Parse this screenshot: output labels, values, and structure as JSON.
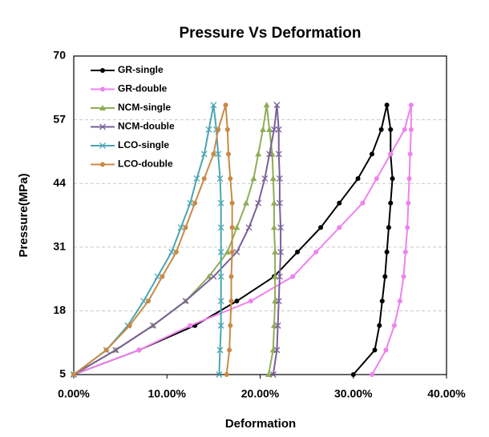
{
  "chart_data": {
    "type": "line",
    "title": "Pressure  Vs  Deformation",
    "xlabel": "Deformation",
    "ylabel": "Pressure(MPa)",
    "xlim": [
      0,
      40
    ],
    "ylim": [
      5,
      70
    ],
    "xticks": [
      {
        "value": 0,
        "label": "0.00%"
      },
      {
        "value": 10,
        "label": "10.00%"
      },
      {
        "value": 20,
        "label": "20.00%"
      },
      {
        "value": 30,
        "label": "30.00%"
      },
      {
        "value": 40,
        "label": "40.00%"
      }
    ],
    "yticks": [
      5,
      18,
      31,
      44,
      57,
      70
    ],
    "grid": true,
    "legend": "upper left",
    "series": [
      {
        "name": "GR-single",
        "color": "#000000",
        "marker": "circle",
        "x": [
          0,
          7,
          13,
          17.5,
          21.5,
          24,
          26.5,
          28.5,
          30.5,
          32,
          33,
          33.6,
          34,
          34,
          34.2,
          34,
          33.8,
          33.6,
          33.4,
          33.1,
          32.8,
          32.3,
          30
        ],
        "values": [
          5,
          10,
          15,
          20,
          25,
          30,
          35,
          40,
          45,
          50,
          55,
          60,
          55,
          50,
          45,
          40,
          35,
          30,
          25,
          20,
          15,
          10,
          5
        ]
      },
      {
        "name": "GR-double",
        "color": "#ee82ee",
        "marker": "circle",
        "x": [
          0,
          7,
          12.5,
          19,
          23.5,
          26,
          28.5,
          31,
          32.5,
          34,
          35.5,
          36.2,
          36.2,
          36.1,
          36,
          35.9,
          35.8,
          35.6,
          35.4,
          35,
          34.4,
          33.5,
          32
        ],
        "values": [
          5,
          10,
          15,
          20,
          25,
          30,
          35,
          40,
          45,
          50,
          55,
          60,
          55,
          50,
          45,
          40,
          35,
          30,
          25,
          20,
          15,
          10,
          5
        ]
      },
      {
        "name": "NCM-single",
        "color": "#8fad55",
        "marker": "triangle",
        "x": [
          0,
          4.5,
          8.5,
          12,
          14.5,
          16.5,
          17.5,
          18.5,
          19.3,
          19.8,
          20.3,
          20.7,
          21,
          21.3,
          21.4,
          21.5,
          21.5,
          21.6,
          21.6,
          21.6,
          21.5,
          21.4,
          20.9
        ],
        "values": [
          5,
          10,
          15,
          20,
          25,
          30,
          35,
          40,
          45,
          50,
          55,
          60,
          55,
          50,
          45,
          40,
          35,
          30,
          25,
          20,
          15,
          10,
          5
        ]
      },
      {
        "name": "NCM-double",
        "color": "#7a5f98",
        "marker": "x",
        "x": [
          0,
          4.5,
          8.5,
          12,
          15,
          17.5,
          18.8,
          19.8,
          20.5,
          21,
          21.5,
          21.8,
          22,
          22,
          22.1,
          22.1,
          22.2,
          22.2,
          22.1,
          22,
          21.9,
          21.8,
          21.4
        ],
        "values": [
          5,
          10,
          15,
          20,
          25,
          30,
          35,
          40,
          45,
          50,
          55,
          60,
          55,
          50,
          45,
          40,
          35,
          30,
          25,
          20,
          15,
          10,
          5
        ]
      },
      {
        "name": "LCO-single",
        "color": "#4aa5b3",
        "marker": "x",
        "x": [
          0,
          3.5,
          5.8,
          7.5,
          9,
          10.5,
          11.5,
          12.5,
          13.2,
          14,
          14.5,
          15,
          15.3,
          15.5,
          15.7,
          15.8,
          15.8,
          15.8,
          15.8,
          15.8,
          15.8,
          15.7,
          15.6
        ],
        "values": [
          5,
          10,
          15,
          20,
          25,
          30,
          35,
          40,
          45,
          50,
          55,
          60,
          55,
          50,
          45,
          40,
          35,
          30,
          25,
          20,
          15,
          10,
          5
        ]
      },
      {
        "name": "LCO-double",
        "color": "#c98a45",
        "marker": "circle",
        "x": [
          0,
          3.5,
          6,
          8,
          9.5,
          11,
          12,
          13,
          14,
          15,
          15.5,
          16.3,
          16.5,
          16.6,
          16.8,
          17,
          17,
          17,
          16.9,
          16.9,
          16.8,
          16.7,
          16.4
        ],
        "values": [
          5,
          10,
          15,
          20,
          25,
          30,
          35,
          40,
          45,
          50,
          55,
          60,
          55,
          50,
          45,
          40,
          35,
          30,
          25,
          20,
          15,
          10,
          5
        ]
      }
    ]
  }
}
